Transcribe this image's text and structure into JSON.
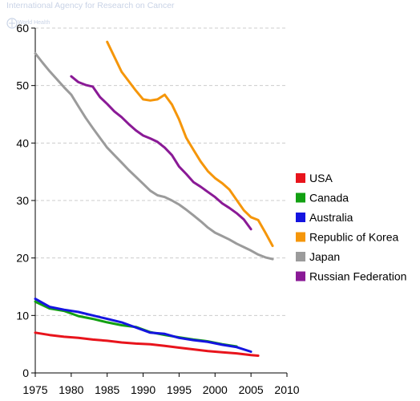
{
  "watermark": {
    "org_name": "International Agency for Research on Cancer",
    "sub_name": "World Health",
    "icon": "who-emblem-icon"
  },
  "chart_data": {
    "type": "line",
    "title": "",
    "xlabel": "",
    "ylabel": "",
    "xlim": [
      1975,
      2010
    ],
    "ylim": [
      0,
      60
    ],
    "x_ticks": [
      1975,
      1980,
      1985,
      1990,
      1995,
      2000,
      2005,
      2010
    ],
    "y_ticks": [
      0,
      10,
      20,
      30,
      40,
      50,
      60
    ],
    "grid": "horizontal-dashed",
    "legend_position": "right",
    "series": [
      {
        "name": "USA",
        "color": "#e8141c",
        "x": [
          1975,
          1977,
          1979,
          1981,
          1983,
          1985,
          1987,
          1989,
          1991,
          1993,
          1995,
          1997,
          1999,
          2001,
          2003,
          2005,
          2006
        ],
        "y": [
          7.0,
          6.6,
          6.3,
          6.1,
          5.8,
          5.6,
          5.3,
          5.1,
          5.0,
          4.7,
          4.4,
          4.1,
          3.8,
          3.6,
          3.4,
          3.1,
          3.0
        ]
      },
      {
        "name": "Canada",
        "color": "#12a012",
        "x": [
          1975,
          1977,
          1979,
          1981,
          1983,
          1985,
          1987,
          1989,
          1991,
          1993,
          1995,
          1997,
          1999,
          2001,
          2003
        ],
        "y": [
          12.4,
          11.2,
          10.8,
          9.9,
          9.4,
          8.8,
          8.3,
          8.0,
          7.1,
          6.6,
          6.2,
          5.8,
          5.5,
          5.0,
          4.6
        ]
      },
      {
        "name": "Australia",
        "color": "#1414e0",
        "x": [
          1975,
          1977,
          1979,
          1981,
          1983,
          1985,
          1987,
          1989,
          1991,
          1993,
          1995,
          1997,
          1999,
          2001,
          2003,
          2005
        ],
        "y": [
          12.9,
          11.5,
          11.0,
          10.6,
          10.0,
          9.4,
          8.8,
          7.9,
          7.0,
          6.8,
          6.1,
          5.7,
          5.4,
          4.9,
          4.5,
          3.7
        ]
      },
      {
        "name": "Republic of Korea",
        "color": "#f5960a",
        "x": [
          1985,
          1987,
          1989,
          1990,
          1991,
          1992,
          1993,
          1994,
          1995,
          1996,
          1997,
          1998,
          1999,
          2000,
          2001,
          2002,
          2003,
          2004,
          2005,
          2006,
          2007,
          2008
        ],
        "y": [
          57.6,
          52.4,
          49.1,
          47.6,
          47.4,
          47.6,
          48.4,
          46.7,
          44.1,
          40.9,
          38.8,
          36.8,
          35.1,
          33.9,
          33.0,
          31.9,
          30.1,
          28.3,
          27.1,
          26.6,
          24.4,
          22.1
        ]
      },
      {
        "name": "Japan",
        "color": "#9b9b9b",
        "x": [
          1975,
          1976,
          1977,
          1978,
          1979,
          1980,
          1981,
          1982,
          1983,
          1984,
          1985,
          1986,
          1987,
          1988,
          1989,
          1990,
          1991,
          1992,
          1993,
          1994,
          1995,
          1996,
          1997,
          1998,
          1999,
          2000,
          2001,
          2002,
          2003,
          2004,
          2005,
          2006,
          2007,
          2008
        ],
        "y": [
          55.6,
          54.0,
          52.5,
          51.1,
          49.7,
          48.4,
          46.4,
          44.4,
          42.6,
          40.9,
          39.2,
          37.9,
          36.6,
          35.3,
          34.1,
          32.9,
          31.7,
          30.9,
          30.6,
          30.0,
          29.3,
          28.4,
          27.4,
          26.4,
          25.3,
          24.4,
          23.8,
          23.2,
          22.5,
          21.9,
          21.3,
          20.6,
          20.1,
          19.8
        ]
      },
      {
        "name": "Russian Federation",
        "color": "#8a1a96",
        "x": [
          1980,
          1981,
          1982,
          1983,
          1984,
          1985,
          1986,
          1987,
          1988,
          1989,
          1990,
          1991,
          1992,
          1993,
          1994,
          1995,
          1996,
          1997,
          1998,
          1999,
          2000,
          2001,
          2002,
          2003,
          2004,
          2005
        ],
        "y": [
          51.6,
          50.6,
          50.1,
          49.8,
          48.0,
          46.8,
          45.5,
          44.5,
          43.3,
          42.2,
          41.3,
          40.8,
          40.2,
          39.2,
          37.9,
          35.9,
          34.6,
          33.2,
          32.4,
          31.5,
          30.6,
          29.5,
          28.7,
          27.8,
          26.7,
          25.0
        ]
      }
    ]
  }
}
